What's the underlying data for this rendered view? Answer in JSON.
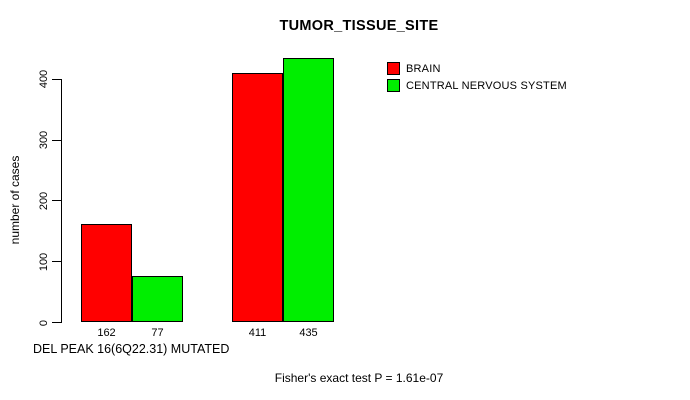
{
  "chart_data": {
    "type": "bar",
    "title": "TUMOR_TISSUE_SITE",
    "ylabel": "number of cases",
    "xlabel": "DEL PEAK 16(6Q22.31) MUTATED",
    "note": "Fisher's exact test P = 1.61e-07",
    "ylim": [
      0,
      440
    ],
    "yticks": [
      0,
      100,
      200,
      300,
      400
    ],
    "grid": false,
    "legend_position": "top-right",
    "categories": [
      "group-1",
      "group-2"
    ],
    "series": [
      {
        "name": "BRAIN",
        "color": "#ff0000",
        "values": [
          162,
          411
        ]
      },
      {
        "name": "CENTRAL NERVOUS SYSTEM",
        "color": "#00ee00",
        "values": [
          77,
          435
        ]
      }
    ],
    "bar_value_labels_shown": true
  }
}
